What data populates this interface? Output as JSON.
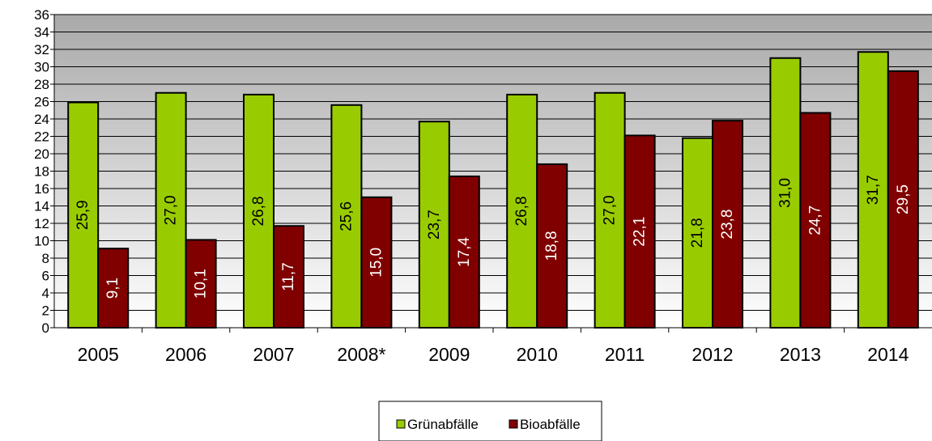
{
  "chart_data": {
    "type": "bar",
    "categories": [
      "2005",
      "2006",
      "2007",
      "2008*",
      "2009",
      "2010",
      "2011",
      "2012",
      "2013",
      "2014"
    ],
    "series": [
      {
        "name": "Grünabfälle",
        "values": [
          25.9,
          27.0,
          26.8,
          25.6,
          23.7,
          26.8,
          27.0,
          21.8,
          31.0,
          31.7
        ],
        "labels": [
          "25,9",
          "27,0",
          "26,8",
          "25,6",
          "23,7",
          "26,8",
          "27,0",
          "21,8",
          "31,0",
          "31,7"
        ],
        "color": "#99cc00",
        "label_color": "#000000"
      },
      {
        "name": "Bioabfälle",
        "values": [
          9.1,
          10.1,
          11.7,
          15.0,
          17.4,
          18.8,
          22.1,
          23.8,
          24.7,
          29.5
        ],
        "labels": [
          "9,1",
          "10,1",
          "11,7",
          "15,0",
          "17,4",
          "18,8",
          "22,1",
          "23,8",
          "24,7",
          "29,5"
        ],
        "color": "#800000",
        "label_color": "#ffffff"
      }
    ],
    "yticks": [
      "0",
      "2",
      "4",
      "6",
      "8",
      "10",
      "12",
      "14",
      "16",
      "18",
      "20",
      "22",
      "24",
      "26",
      "28",
      "30",
      "32",
      "34",
      "36"
    ],
    "ylim": [
      0,
      36
    ],
    "grid": true,
    "legend": "bottom-center",
    "title": "",
    "xlabel": "",
    "ylabel": ""
  }
}
